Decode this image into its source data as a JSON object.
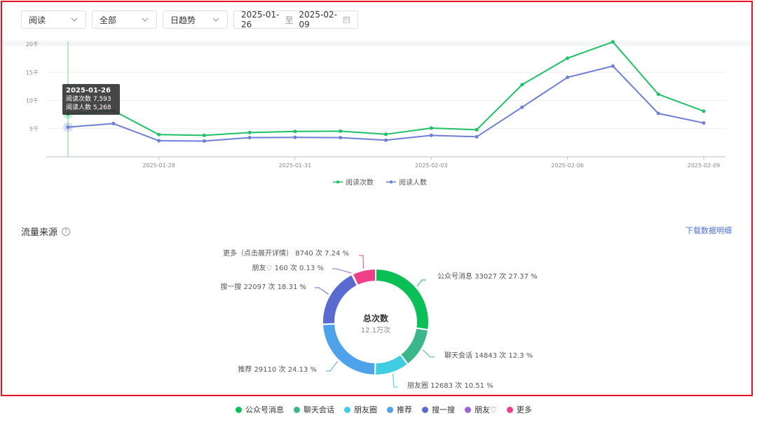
{
  "filters": {
    "metric": "阅读",
    "scope": "全部",
    "granularity": "日趋势",
    "date_start": "2025-01-26",
    "date_sep": "至",
    "date_end": "2025-02-09"
  },
  "chart_data": [
    {
      "type": "line",
      "x": [
        "2025-01-26",
        "2025-01-27",
        "2025-01-28",
        "2025-01-29",
        "2025-01-30",
        "2025-01-31",
        "2025-02-01",
        "2025-02-02",
        "2025-02-03",
        "2025-02-04",
        "2025-02-05",
        "2025-02-06",
        "2025-02-07",
        "2025-02-08",
        "2025-02-09"
      ],
      "x_ticks": [
        "2025-01-28",
        "2025-01-31",
        "2025-02-03",
        "2025-02-06",
        "2025-02-09"
      ],
      "y_ticks": [
        {
          "value": 5000,
          "label": "5千"
        },
        {
          "value": 10000,
          "label": "10千"
        },
        {
          "value": 15000,
          "label": "15千"
        },
        {
          "value": 20000,
          "label": "20千"
        }
      ],
      "ylim": [
        0,
        20500
      ],
      "series": [
        {
          "name": "阅读次数",
          "color": "#1ec265",
          "values": [
            7593,
            8200,
            3950,
            3800,
            4300,
            4500,
            4550,
            4000,
            5100,
            4800,
            12800,
            17500,
            20400,
            11100,
            8100
          ]
        },
        {
          "name": "阅读人数",
          "color": "#6d7fd6",
          "values": [
            5268,
            5900,
            2850,
            2800,
            3400,
            3450,
            3400,
            2950,
            3800,
            3550,
            8800,
            14100,
            16100,
            7700,
            6000
          ]
        }
      ],
      "tooltip": {
        "date": "2025-01-26",
        "line1": "阅读次数 7,593",
        "line2": "阅读人数 5,268"
      },
      "grid": true,
      "legend": "bottom"
    },
    {
      "type": "pie",
      "title": "总次数",
      "subtitle": "12.1万次",
      "slices": [
        {
          "name": "公众号消息",
          "value": 33027,
          "percent": 27.37,
          "color": "#0ac056",
          "label": "公众号消息 33027 次 27.37 %"
        },
        {
          "name": "聊天会话",
          "value": 14843,
          "percent": 12.3,
          "color": "#3cb68a",
          "label": "聊天会话 14843 次 12.3 %"
        },
        {
          "name": "朋友圈",
          "value": 12683,
          "percent": 10.51,
          "color": "#40cde3",
          "label": "朋友圈 12683 次 10.51 %"
        },
        {
          "name": "推荐",
          "value": 29110,
          "percent": 24.13,
          "color": "#4ea2ea",
          "label": "推荐 29110 次 24.13 %"
        },
        {
          "name": "搜一搜",
          "value": 22097,
          "percent": 18.31,
          "color": "#5a6bd0",
          "label": "搜一搜 22097 次 18.31 %"
        },
        {
          "name": "朋友♡",
          "value": 160,
          "percent": 0.13,
          "color": "#9b63d6",
          "label": "朋友♡ 160 次 0.13 %"
        },
        {
          "name": "更多",
          "value": 8740,
          "percent": 7.24,
          "color": "#ef3f86",
          "label": "更多（点击展开详情） 8740 次 7.24 %"
        }
      ],
      "legend": "bottom"
    }
  ],
  "traffic": {
    "section_title": "流量来源",
    "help_glyph": "?",
    "download_label": "下载数据明细"
  }
}
